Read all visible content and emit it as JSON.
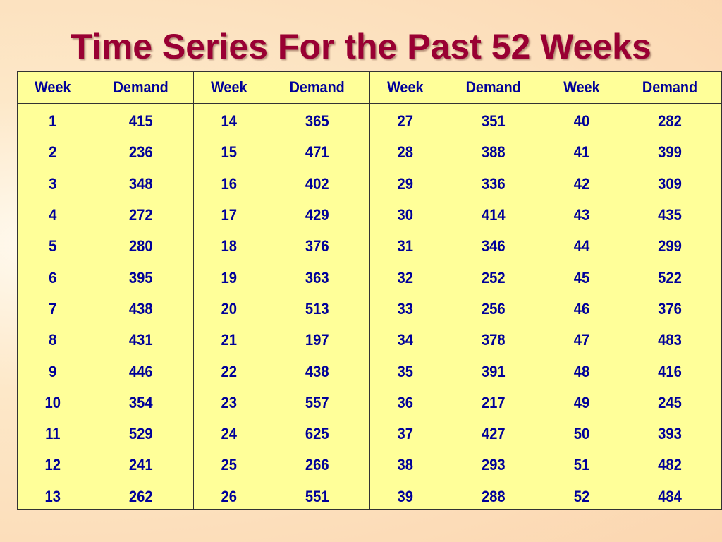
{
  "title": "Time Series For the Past 52 Weeks",
  "header": {
    "week": "Week",
    "demand": "Demand"
  },
  "blocks": [
    {
      "rows": [
        {
          "week": "1",
          "demand": "415"
        },
        {
          "week": "2",
          "demand": "236"
        },
        {
          "week": "3",
          "demand": "348"
        },
        {
          "week": "4",
          "demand": "272"
        },
        {
          "week": "5",
          "demand": "280"
        },
        {
          "week": "6",
          "demand": "395"
        },
        {
          "week": "7",
          "demand": "438"
        },
        {
          "week": "8",
          "demand": "431"
        },
        {
          "week": "9",
          "demand": "446"
        },
        {
          "week": "10",
          "demand": "354"
        },
        {
          "week": "11",
          "demand": "529"
        },
        {
          "week": "12",
          "demand": "241"
        },
        {
          "week": "13",
          "demand": "262"
        }
      ]
    },
    {
      "rows": [
        {
          "week": "14",
          "demand": "365"
        },
        {
          "week": "15",
          "demand": "471"
        },
        {
          "week": "16",
          "demand": "402"
        },
        {
          "week": "17",
          "demand": "429"
        },
        {
          "week": "18",
          "demand": "376"
        },
        {
          "week": "19",
          "demand": "363"
        },
        {
          "week": "20",
          "demand": "513"
        },
        {
          "week": "21",
          "demand": "197"
        },
        {
          "week": "22",
          "demand": "438"
        },
        {
          "week": "23",
          "demand": "557"
        },
        {
          "week": "24",
          "demand": "625"
        },
        {
          "week": "25",
          "demand": "266"
        },
        {
          "week": "26",
          "demand": "551"
        }
      ]
    },
    {
      "rows": [
        {
          "week": "27",
          "demand": "351"
        },
        {
          "week": "28",
          "demand": "388"
        },
        {
          "week": "29",
          "demand": "336"
        },
        {
          "week": "30",
          "demand": "414"
        },
        {
          "week": "31",
          "demand": "346"
        },
        {
          "week": "32",
          "demand": "252"
        },
        {
          "week": "33",
          "demand": "256"
        },
        {
          "week": "34",
          "demand": "378"
        },
        {
          "week": "35",
          "demand": "391"
        },
        {
          "week": "36",
          "demand": "217"
        },
        {
          "week": "37",
          "demand": "427"
        },
        {
          "week": "38",
          "demand": "293"
        },
        {
          "week": "39",
          "demand": "288"
        }
      ]
    },
    {
      "rows": [
        {
          "week": "40",
          "demand": "282"
        },
        {
          "week": "41",
          "demand": "399"
        },
        {
          "week": "42",
          "demand": "309"
        },
        {
          "week": "43",
          "demand": "435"
        },
        {
          "week": "44",
          "demand": "299"
        },
        {
          "week": "45",
          "demand": "522"
        },
        {
          "week": "46",
          "demand": "376"
        },
        {
          "week": "47",
          "demand": "483"
        },
        {
          "week": "48",
          "demand": "416"
        },
        {
          "week": "49",
          "demand": "245"
        },
        {
          "week": "50",
          "demand": "393"
        },
        {
          "week": "51",
          "demand": "482"
        },
        {
          "week": "52",
          "demand": "484"
        }
      ]
    }
  ],
  "colors": {
    "title": "#990033",
    "text": "#000099",
    "table_bg": "#ffff99",
    "border": "#333333"
  }
}
